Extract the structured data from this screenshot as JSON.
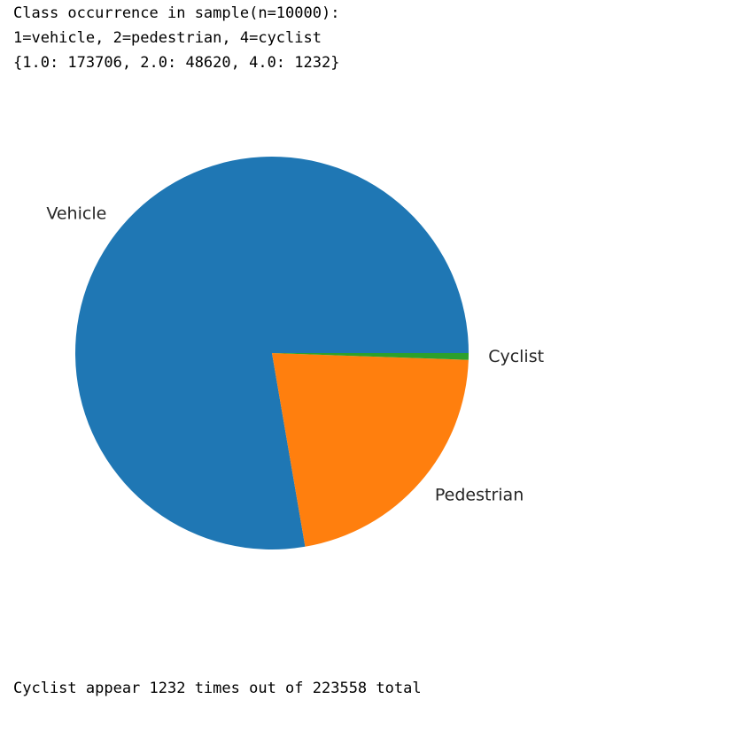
{
  "output": {
    "line1": "Class occurrence in sample(n=10000):",
    "line2": "1=vehicle, 2=pedestrian, 4=cyclist",
    "line3": "{1.0: 173706, 2.0: 48620, 4.0: 1232}",
    "footer": "Cyclist appear 1232 times out of 223558 total"
  },
  "chart_data": {
    "type": "pie",
    "title": "",
    "labels": [
      "Vehicle",
      "Pedestrian",
      "Cyclist"
    ],
    "values": [
      173706,
      48620,
      1232
    ],
    "colors": [
      "#1f77b4",
      "#ff7f0e",
      "#2ca02c"
    ],
    "start_angle_deg": 0,
    "direction": "counterclockwise"
  }
}
